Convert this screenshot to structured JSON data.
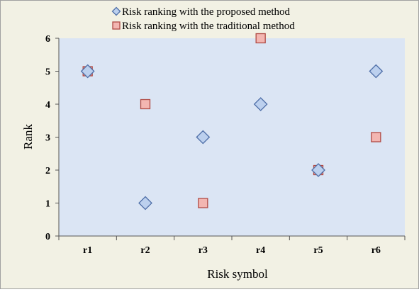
{
  "chart_data": {
    "type": "scatter",
    "categories": [
      "r1",
      "r2",
      "r3",
      "r4",
      "r5",
      "r6"
    ],
    "series": [
      {
        "name": "Risk ranking with the proposed method",
        "values": [
          5,
          1,
          3,
          4,
          2,
          5
        ],
        "marker": "diamond",
        "fill": "#bcd0ee",
        "stroke": "#4f6fa8"
      },
      {
        "name": "Risk ranking with the traditional method",
        "values": [
          5,
          4,
          1,
          6,
          2,
          3
        ],
        "marker": "square",
        "fill": "#f3b6b1",
        "stroke": "#b04a44"
      }
    ],
    "xlabel": "Risk symbol",
    "ylabel": "Rank",
    "ylim": [
      0,
      6
    ],
    "yticks": [
      "0",
      "1",
      "2",
      "3",
      "4",
      "5",
      "6"
    ],
    "legend_position": "top",
    "grid": false,
    "plot_background": "#dbe5f4",
    "chart_background": "#f2f1e4"
  }
}
